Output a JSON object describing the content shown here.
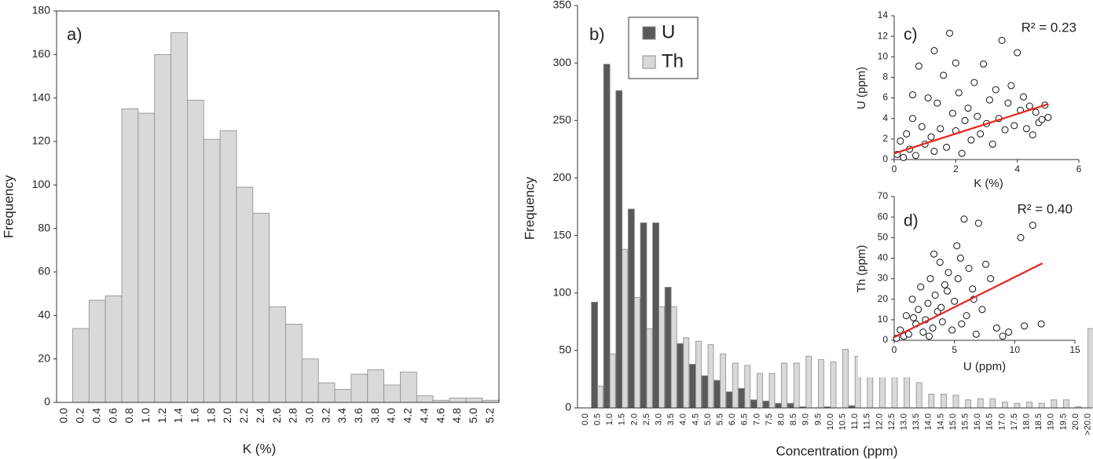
{
  "chart_data": [
    {
      "type": "bar",
      "panel_label": "a)",
      "x_label": "K (%)",
      "y_label": "Frequency",
      "categories": [
        "0.0",
        "0.2",
        "0.4",
        "0.6",
        "0.8",
        "1.0",
        "1.2",
        "1.4",
        "1.6",
        "1.8",
        "2.0",
        "2.2",
        "2.4",
        "2.6",
        "2.8",
        "3.0",
        "3.2",
        "3.4",
        "3.6",
        "3.8",
        "4.0",
        "4.2",
        "4.4",
        "4.6",
        "4.8",
        "5.0",
        "5.2"
      ],
      "values": [
        0,
        34,
        47,
        49,
        135,
        133,
        160,
        170,
        139,
        121,
        125,
        99,
        87,
        44,
        36,
        20,
        9,
        6,
        13,
        15,
        8,
        14,
        3,
        1,
        2,
        2,
        1
      ],
      "color": "#d9d9d9",
      "ylim": [
        0,
        180
      ],
      "yticks": [
        0,
        20,
        40,
        60,
        80,
        100,
        120,
        140,
        160,
        180
      ]
    },
    {
      "type": "bar",
      "panel_label": "b)",
      "x_label": "Concentration (ppm)",
      "y_label": "Frequency",
      "categories": [
        "0.0",
        "0.5",
        "1.0",
        "1.5",
        "2.0",
        "2.5",
        "3.0",
        "3.5",
        "4.0",
        "4.5",
        "5.0",
        "5.5",
        "6.0",
        "6.5",
        "7.0",
        "7.5",
        "8.0",
        "8.5",
        "9.0",
        "9.5",
        "10.0",
        "10.5",
        "11.0",
        "11.5",
        "12.0",
        "12.5",
        "13.0",
        "13.5",
        "14.0",
        "14.5",
        "15.0",
        "15.5",
        "16.0",
        "16.5",
        "17.0",
        "17.5",
        "18.0",
        "18.5",
        "19.0",
        "19.5",
        "20.0",
        ">20.0"
      ],
      "series": [
        {
          "name": "U",
          "color": "#595959",
          "values": [
            0,
            92,
            299,
            276,
            173,
            161,
            161,
            105,
            56,
            38,
            28,
            24,
            14,
            17,
            7,
            6,
            4,
            4,
            1,
            0,
            1,
            0,
            2,
            0,
            0,
            0,
            0,
            0,
            0,
            0,
            0,
            0,
            0,
            0,
            0,
            0,
            0,
            0,
            0,
            0,
            0,
            0
          ]
        },
        {
          "name": "Th",
          "color": "#d9d9d9",
          "values": [
            0,
            19,
            47,
            138,
            96,
            69,
            88,
            88,
            61,
            58,
            55,
            47,
            39,
            37,
            30,
            30,
            39,
            39,
            45,
            42,
            40,
            51,
            45,
            27,
            29,
            38,
            30,
            22,
            12,
            12,
            11,
            7,
            8,
            8,
            5,
            4,
            5,
            4,
            7,
            7,
            1,
            69
          ]
        }
      ],
      "ylim": [
        0,
        350
      ],
      "yticks": [
        0,
        50,
        100,
        150,
        200,
        250,
        300,
        350
      ]
    },
    {
      "type": "scatter",
      "panel_label": "c)",
      "x_label": "K (%)",
      "y_label": "U (ppm)",
      "annotation": "R² = 0.23",
      "x": [
        0.1,
        0.2,
        0.3,
        0.4,
        0.5,
        0.6,
        0.7,
        0.8,
        0.9,
        1.0,
        1.1,
        1.2,
        1.3,
        1.4,
        1.5,
        1.6,
        1.7,
        1.8,
        1.9,
        2.0,
        2.1,
        2.2,
        2.3,
        2.4,
        2.5,
        2.6,
        2.7,
        2.8,
        2.9,
        3.0,
        3.1,
        3.2,
        3.3,
        3.4,
        3.5,
        3.6,
        3.7,
        3.8,
        3.9,
        4.0,
        4.1,
        4.2,
        4.3,
        4.4,
        4.5,
        4.6,
        4.7,
        4.8,
        4.9,
        5.0,
        1.3,
        0.6,
        2.0
      ],
      "values": [
        0.5,
        1.8,
        0.2,
        2.5,
        1.0,
        4.0,
        0.4,
        9.1,
        3.2,
        1.5,
        6.0,
        2.2,
        0.8,
        5.5,
        3.0,
        8.2,
        1.2,
        12.3,
        4.5,
        2.8,
        6.5,
        0.6,
        3.8,
        5.0,
        1.9,
        7.5,
        4.2,
        2.5,
        9.3,
        3.5,
        5.8,
        1.5,
        6.8,
        4.0,
        11.6,
        2.9,
        5.5,
        7.2,
        3.3,
        10.4,
        4.8,
        6.1,
        3.0,
        5.2,
        2.4,
        4.6,
        3.6,
        3.9,
        5.3,
        4.1,
        10.6,
        6.3,
        9.4
      ],
      "trendline": {
        "color": "#e8261e",
        "x": [
          0,
          5
        ],
        "y": [
          0.6,
          5.4
        ]
      },
      "xlim": [
        0,
        6
      ],
      "xticks": [
        0,
        2,
        4,
        6
      ],
      "ylim": [
        0,
        14
      ],
      "yticks": [
        0,
        2,
        4,
        6,
        8,
        10,
        12,
        14
      ]
    },
    {
      "type": "scatter",
      "panel_label": "d)",
      "x_label": "U (ppm)",
      "y_label": "Th (ppm)",
      "annotation": "R² = 0.40",
      "x": [
        0.2,
        0.5,
        0.8,
        1.0,
        1.2,
        1.5,
        1.8,
        2.0,
        2.2,
        2.4,
        2.6,
        2.8,
        3.0,
        3.2,
        3.4,
        3.6,
        3.8,
        4.0,
        4.2,
        4.5,
        4.8,
        5.0,
        5.2,
        5.5,
        5.8,
        6.0,
        6.2,
        6.5,
        6.8,
        7.0,
        7.3,
        7.6,
        8.0,
        8.5,
        9.0,
        9.5,
        10.5,
        10.8,
        11.5,
        12.2,
        3.3,
        4.4,
        5.6,
        2.9,
        6.6,
        1.6,
        3.9,
        5.3
      ],
      "values": [
        1,
        5,
        2,
        12,
        3,
        20,
        8,
        15,
        26,
        4,
        10,
        18,
        30,
        6,
        22,
        14,
        38,
        9,
        27,
        33,
        5,
        19,
        46,
        40,
        59,
        12,
        35,
        25,
        3,
        57,
        15,
        37,
        30,
        6,
        2,
        4,
        50,
        7,
        56,
        8,
        42,
        24,
        8,
        2,
        20,
        11,
        16,
        30
      ],
      "trendline": {
        "color": "#e8261e",
        "x": [
          0,
          12.3
        ],
        "y": [
          1.5,
          37.5
        ]
      },
      "xlim": [
        0,
        15
      ],
      "xticks": [
        0,
        5,
        10,
        15
      ],
      "ylim": [
        0,
        70
      ],
      "yticks": [
        0,
        10,
        20,
        30,
        40,
        50,
        60,
        70
      ]
    }
  ]
}
